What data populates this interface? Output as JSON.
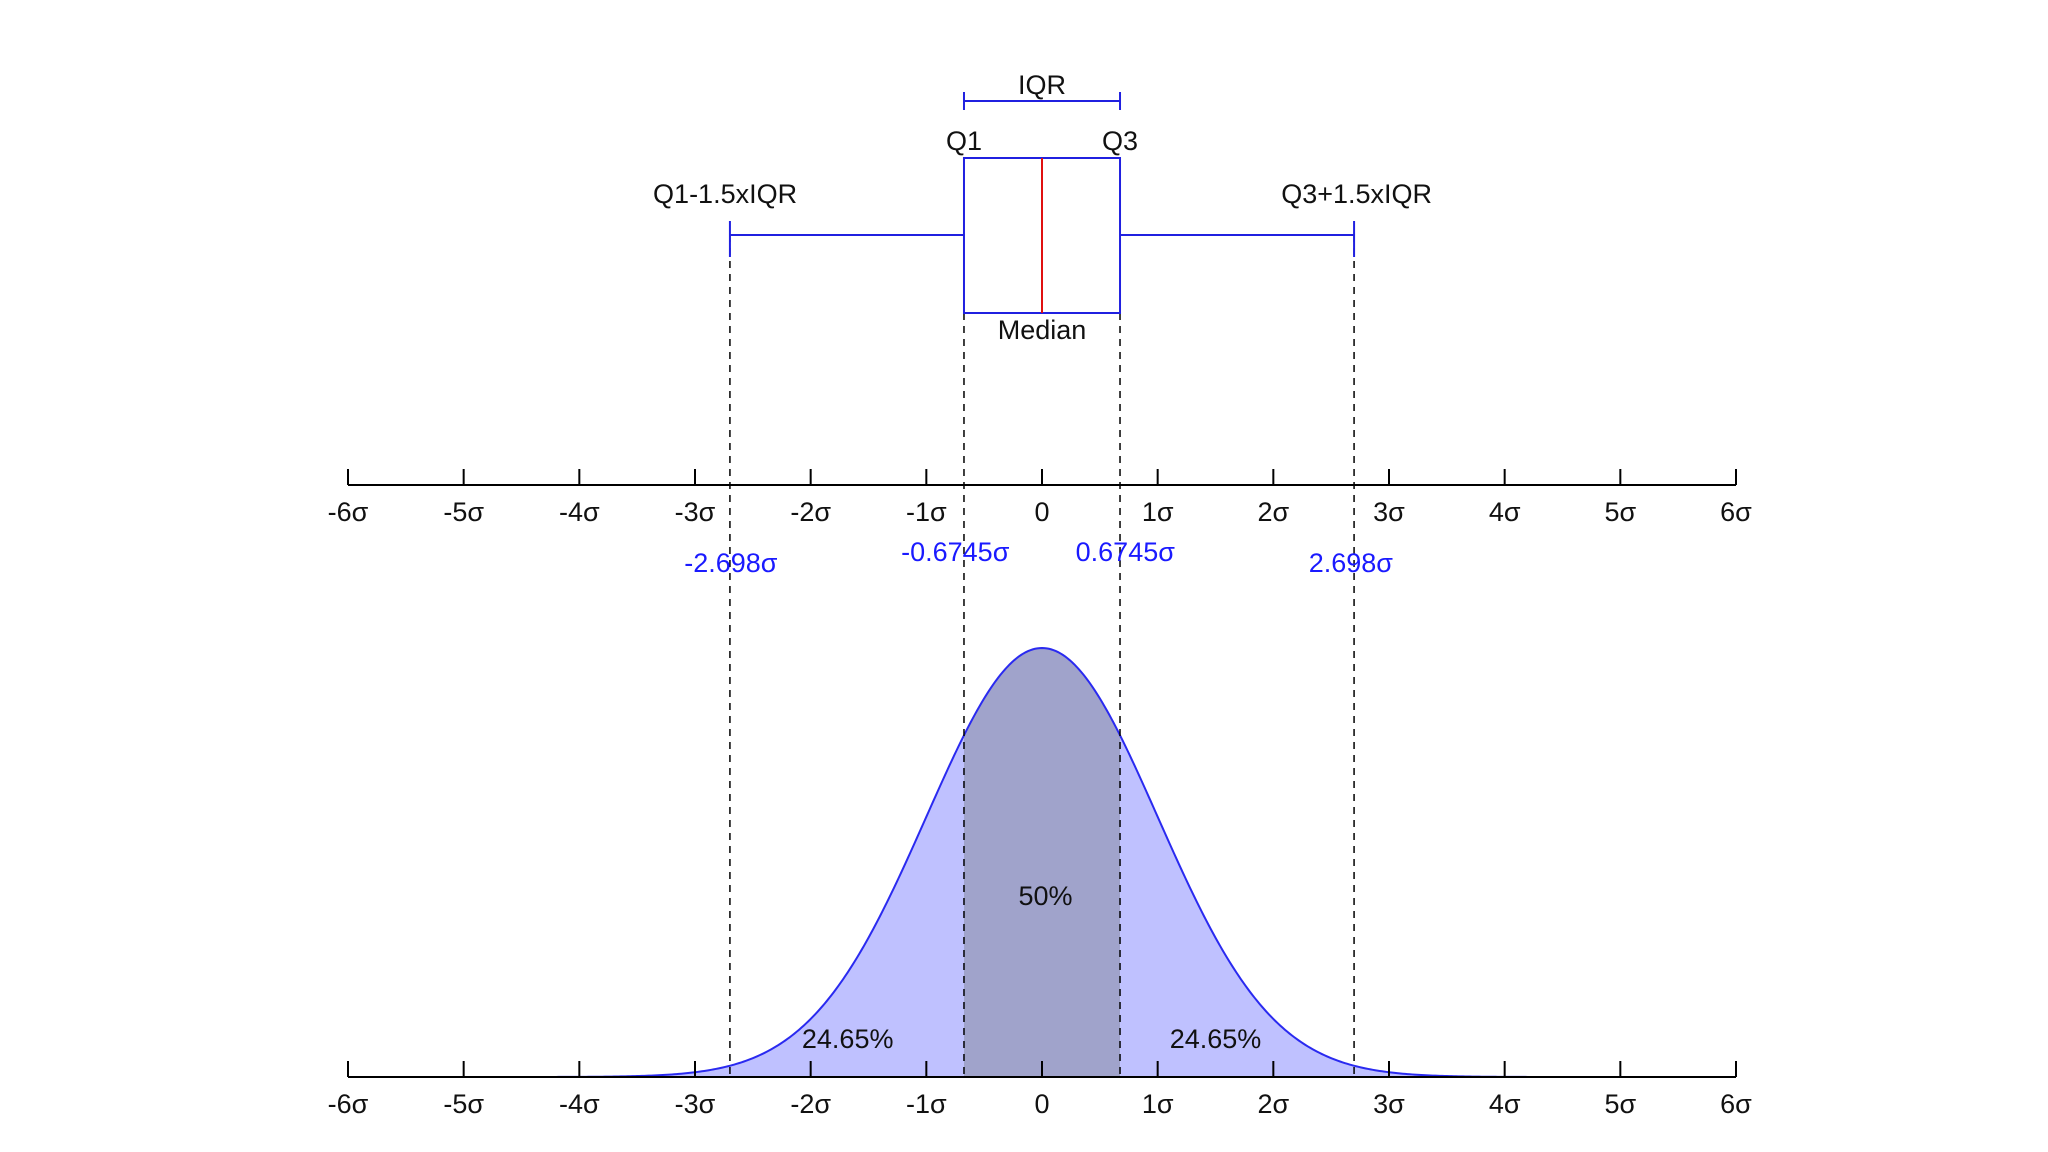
{
  "chart_data": [
    {
      "type": "box",
      "stats": {
        "whisker_low": -2.698,
        "q1": -0.6745,
        "median": 0,
        "q3": 0.6745,
        "whisker_high": 2.698
      },
      "annotations": {
        "iqr": "IQR",
        "q1": "Q1",
        "q3": "Q3",
        "lower_fence": "Q1-1.5xIQR",
        "upper_fence": "Q3+1.5xIQR",
        "median": "Median"
      },
      "axis": {
        "xlim": [
          -6,
          6
        ],
        "ticks": [
          -6,
          -5,
          -4,
          -3,
          -2,
          -1,
          0,
          1,
          2,
          3,
          4,
          5,
          6
        ],
        "tick_labels": [
          "-6σ",
          "-5σ",
          "-4σ",
          "-3σ",
          "-2σ",
          "-1σ",
          "0",
          "1σ",
          "2σ",
          "3σ",
          "4σ",
          "5σ",
          "6σ"
        ]
      },
      "marker_labels": [
        "-2.698σ",
        "-0.6745σ",
        "0.6745σ",
        "2.698σ"
      ]
    },
    {
      "type": "area",
      "distribution": "normal",
      "mean": 0,
      "sd": 1,
      "xlim": [
        -6,
        6
      ],
      "tick_labels": [
        "-6σ",
        "-5σ",
        "-4σ",
        "-3σ",
        "-2σ",
        "-1σ",
        "0",
        "1σ",
        "2σ",
        "3σ",
        "4σ",
        "5σ",
        "6σ"
      ],
      "regions": [
        {
          "from": -2.698,
          "to": -0.6745,
          "label": "24.65%",
          "fill": "#bfc1ff"
        },
        {
          "from": -0.6745,
          "to": 0.6745,
          "label": "50%",
          "fill": "#a0a3cb"
        },
        {
          "from": 0.6745,
          "to": 2.698,
          "label": "24.65%",
          "fill": "#bfc1ff"
        }
      ],
      "curve_color": "#2a2af0",
      "tail_fill": "#bfc1ff"
    }
  ],
  "colors": {
    "box": "#2020e0",
    "median": "#e01010",
    "axis": "#000000",
    "marker_text": "#1a1aff"
  }
}
